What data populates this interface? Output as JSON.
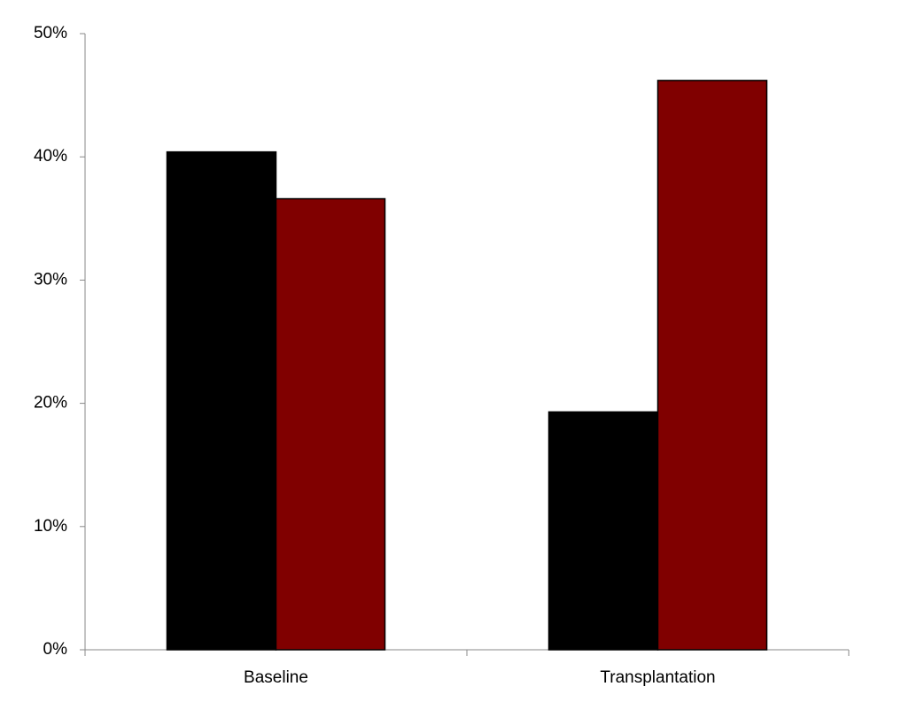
{
  "chart_data": {
    "type": "bar",
    "categories": [
      "Baseline",
      "Transplantation"
    ],
    "series": [
      {
        "color": "#000000",
        "values": [
          40.4,
          19.3
        ]
      },
      {
        "color": "#800000",
        "values": [
          36.6,
          46.2
        ]
      }
    ],
    "ylim": [
      0,
      50
    ],
    "yticks": [
      {
        "value": 0,
        "label": "0%"
      },
      {
        "value": 10,
        "label": "10%"
      },
      {
        "value": 20,
        "label": "20%"
      },
      {
        "value": 30,
        "label": "30%"
      },
      {
        "value": 40,
        "label": "40%"
      },
      {
        "value": 50,
        "label": "50%"
      }
    ],
    "grid": false
  }
}
